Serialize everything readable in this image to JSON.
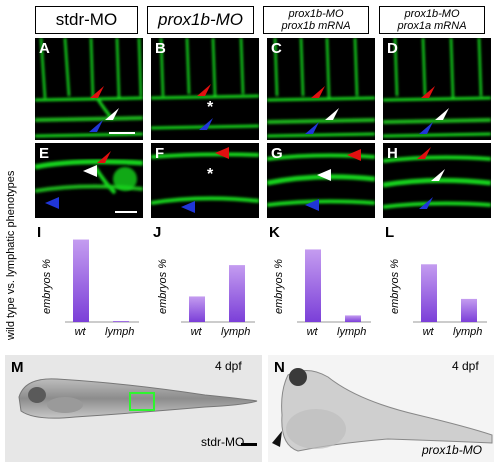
{
  "headers": [
    {
      "line1": "stdr-MO",
      "line2": "",
      "italic": false
    },
    {
      "line1": "prox1b-MO",
      "line2": "",
      "italic": true
    },
    {
      "line1": "prox1b-MO",
      "line2": "prox1b mRNA",
      "italic": true
    },
    {
      "line1": "prox1b-MO",
      "line2": "prox1a mRNA",
      "italic": true
    }
  ],
  "micro_panels": {
    "row1": [
      "A",
      "B",
      "C",
      "D"
    ],
    "row2": [
      "E",
      "F",
      "G",
      "H"
    ],
    "asterisk": "*"
  },
  "charts_row_label": "wild type vs. lymphatic phenotypes",
  "chart_data": [
    {
      "type": "bar",
      "panel": "I",
      "categories": [
        "wt",
        "lymph"
      ],
      "values": [
        100,
        1
      ],
      "ylabel": "embryos %",
      "ylim": [
        0,
        100
      ]
    },
    {
      "type": "bar",
      "panel": "J",
      "categories": [
        "wt",
        "lymph"
      ],
      "values": [
        31,
        69
      ],
      "ylabel": "embryos %",
      "ylim": [
        0,
        100
      ]
    },
    {
      "type": "bar",
      "panel": "K",
      "categories": [
        "wt",
        "lymph"
      ],
      "values": [
        88,
        8
      ],
      "ylabel": "embryos %",
      "ylim": [
        0,
        100
      ]
    },
    {
      "type": "bar",
      "panel": "L",
      "categories": [
        "wt",
        "lymph"
      ],
      "values": [
        70,
        28
      ],
      "ylabel": "embryos %",
      "ylim": [
        0,
        100
      ]
    }
  ],
  "photos": {
    "M": {
      "label": "M",
      "stage": "4 dpf",
      "caption": "stdr-MO"
    },
    "N": {
      "label": "N",
      "stage": "4 dpf",
      "caption": "prox1b-MO"
    }
  },
  "colors": {
    "fluorescence": "#19d41c",
    "bar_top": "#c49cf0",
    "bar_bottom": "#7b3fd8",
    "arrow_red": "#e01010",
    "arrow_white": "#ffffff",
    "arrow_blue": "#2036d8",
    "box_green": "#2ef52e"
  }
}
